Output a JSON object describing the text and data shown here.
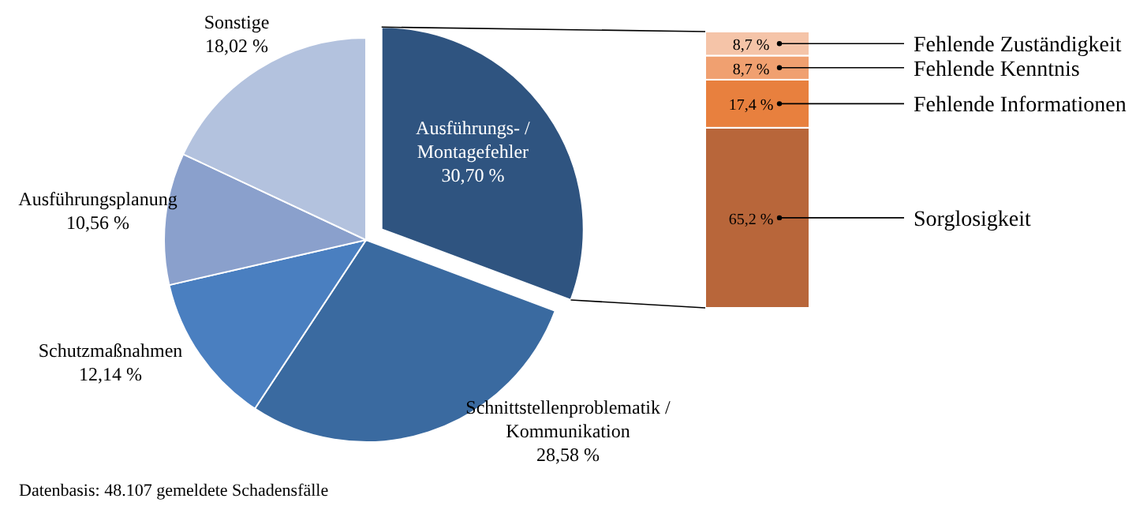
{
  "chart_data": [
    {
      "type": "pie",
      "categories": [
        "Ausführungs- / Montagefehler",
        "Schnittstellenproblematik / Kommunikation",
        "Schutzmaßnahmen",
        "Ausführungsplanung",
        "Sonstige"
      ],
      "values": [
        30.7,
        28.58,
        12.14,
        10.56,
        18.02
      ],
      "colors": [
        "#2f5480",
        "#3a6aa0",
        "#4a7fc0",
        "#8aa0cc",
        "#b3c2de"
      ],
      "value_labels": [
        "30,70 %",
        "28,58 %",
        "12,14 %",
        "10,56 %",
        "18,02 %"
      ],
      "annotations": [
        "Datenbasis: 48.107 gemeldete Schadensfälle"
      ]
    },
    {
      "type": "bar",
      "stacked": true,
      "categories": [
        null
      ],
      "series": [
        {
          "name": "Sorglosigkeit",
          "color": "#b8663a",
          "values": [
            65.2
          ],
          "value_labels": [
            "65,2 %"
          ]
        },
        {
          "name": "Fehlende Informationen",
          "color": "#e8803e",
          "values": [
            17.4
          ],
          "value_labels": [
            "17,4 %"
          ]
        },
        {
          "name": "Fehlende Kenntnis",
          "color": "#f0a070",
          "values": [
            8.7
          ],
          "value_labels": [
            "8,7 %"
          ]
        },
        {
          "name": "Fehlende Zuständigkeit",
          "color": "#f5c4a8",
          "values": [
            8.7
          ],
          "value_labels": [
            "8,7 %"
          ]
        }
      ],
      "ylim": [
        0,
        100
      ]
    }
  ]
}
